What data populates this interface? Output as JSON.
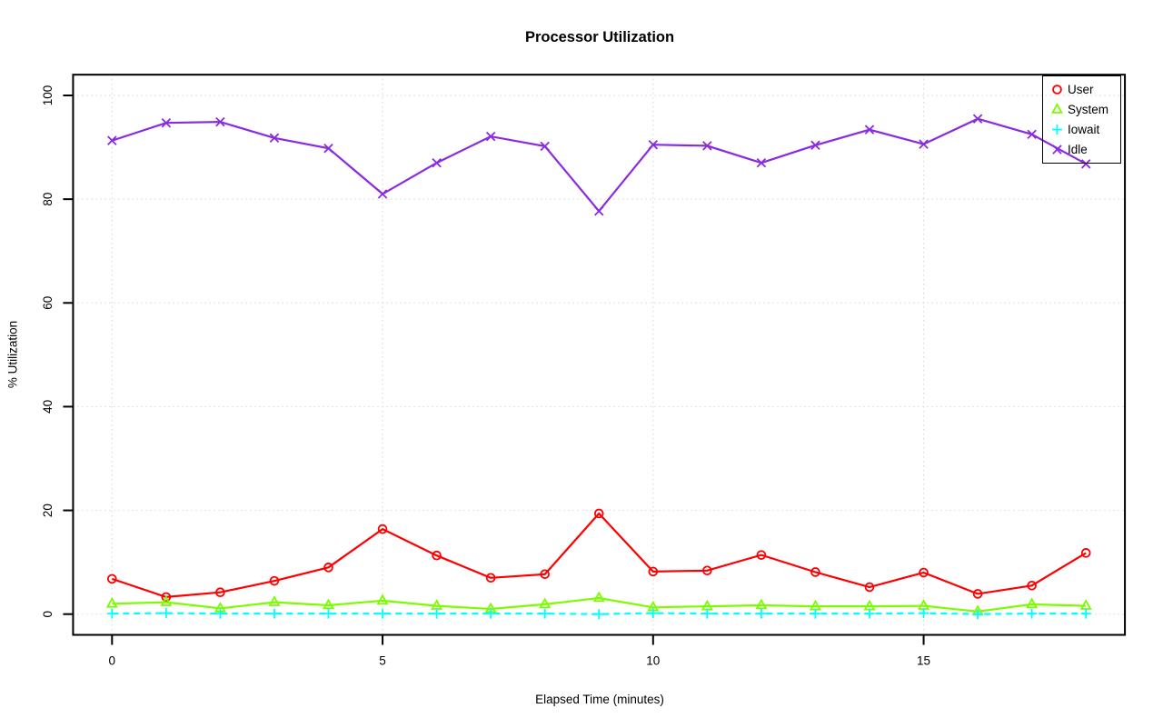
{
  "chart_data": {
    "type": "line",
    "title": "Processor Utilization",
    "xlabel": "Elapsed Time (minutes)",
    "ylabel": "% Utilization",
    "x": [
      0,
      1,
      2,
      3,
      4,
      5,
      6,
      7,
      8,
      9,
      10,
      11,
      12,
      13,
      14,
      15,
      16,
      17,
      18
    ],
    "x_ticks": [
      0,
      5,
      10,
      15
    ],
    "y_ticks": [
      0,
      20,
      40,
      60,
      80,
      100
    ],
    "xlim": [
      -0.72,
      18.72
    ],
    "ylim": [
      -4,
      104
    ],
    "grid": "dotted",
    "grid_color": "#d4d4d4",
    "legend_position": "top-right",
    "series": [
      {
        "name": "User",
        "color": "#ff0000",
        "marker": "circle",
        "line": "solid",
        "values": [
          6.8,
          3.3,
          4.2,
          6.4,
          9.0,
          16.4,
          11.3,
          7.0,
          7.7,
          19.4,
          8.2,
          8.4,
          11.4,
          8.1,
          5.2,
          8.0,
          3.9,
          5.5,
          11.8
        ]
      },
      {
        "name": "System",
        "color": "#7cfc00",
        "marker": "triangle",
        "line": "solid",
        "values": [
          2.0,
          2.3,
          1.1,
          2.3,
          1.7,
          2.6,
          1.6,
          1.0,
          1.9,
          3.1,
          1.3,
          1.5,
          1.7,
          1.5,
          1.5,
          1.6,
          0.5,
          1.9,
          1.6
        ]
      },
      {
        "name": "Iowait",
        "color": "#00ffff",
        "marker": "plus",
        "line": "dashed",
        "values": [
          0.1,
          0.2,
          0.1,
          0.1,
          0.1,
          0.1,
          0.1,
          0.1,
          0.1,
          0.0,
          0.2,
          0.1,
          0.1,
          0.1,
          0.1,
          0.2,
          0.0,
          0.1,
          0.1
        ]
      },
      {
        "name": "Idle",
        "color": "#8a2be2",
        "marker": "x",
        "line": "solid",
        "values": [
          91.3,
          94.7,
          94.9,
          91.8,
          89.8,
          81.0,
          87.0,
          92.1,
          90.2,
          77.7,
          90.5,
          90.3,
          87.0,
          90.4,
          93.4,
          90.6,
          95.5,
          92.5,
          86.8
        ]
      }
    ]
  }
}
